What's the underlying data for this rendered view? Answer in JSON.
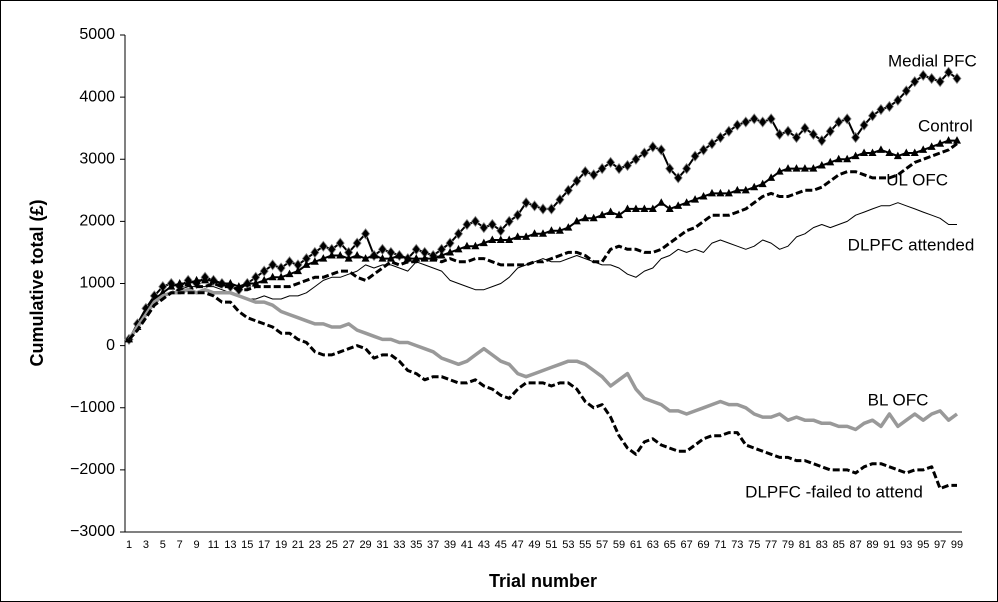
{
  "chart_data": {
    "type": "line",
    "y_label": "Cumulative total (£)",
    "x_label": "Trial number",
    "categories": [
      "1",
      null,
      "3",
      null,
      "5",
      null,
      "7",
      null,
      "9",
      null,
      "11",
      null,
      "13",
      null,
      "15",
      null,
      "17",
      null,
      "19",
      null,
      "21",
      null,
      "23",
      null,
      "25",
      null,
      "27",
      null,
      "29",
      null,
      "31",
      null,
      "33",
      null,
      "35",
      null,
      "37",
      null,
      "39",
      null,
      "41",
      null,
      "43",
      null,
      "45",
      null,
      "47",
      null,
      "49",
      null,
      "51",
      null,
      "53",
      null,
      "55",
      null,
      "57",
      null,
      "59",
      null,
      "61",
      null,
      "63",
      null,
      "65",
      null,
      "67",
      null,
      "69",
      null,
      "71",
      null,
      "73",
      null,
      "75",
      null,
      "77",
      null,
      "79",
      null,
      "81",
      null,
      "83",
      null,
      "85",
      null,
      "87",
      null,
      "89",
      null,
      "91",
      null,
      "93",
      null,
      "95",
      null,
      "97",
      null,
      "99"
    ],
    "ylim": [
      -3000,
      5000
    ],
    "yticks": [
      {
        "value": -3000,
        "label": "−3000"
      },
      {
        "value": -2000,
        "label": "−2000"
      },
      {
        "value": -1000,
        "label": "−1000"
      },
      0,
      1000,
      2000,
      3000,
      4000,
      5000
    ],
    "series": [
      {
        "name": "Medial PFC",
        "color": "#000000",
        "marker": "diamond",
        "line_style": "solid",
        "values": [
          100,
          350,
          600,
          800,
          950,
          1000,
          950,
          1050,
          1000,
          1100,
          1050,
          1000,
          950,
          900,
          1000,
          1100,
          1200,
          1300,
          1250,
          1350,
          1300,
          1400,
          1500,
          1600,
          1550,
          1650,
          1500,
          1650,
          1800,
          1450,
          1550,
          1500,
          1450,
          1400,
          1550,
          1500,
          1450,
          1550,
          1650,
          1800,
          1950,
          2000,
          1900,
          1950,
          1850,
          2000,
          2100,
          2300,
          2250,
          2200,
          2200,
          2350,
          2500,
          2650,
          2800,
          2750,
          2850,
          2950,
          2850,
          2900,
          3000,
          3100,
          3200,
          3150,
          2850,
          2700,
          2850,
          3050,
          3150,
          3250,
          3350,
          3450,
          3550,
          3600,
          3650,
          3600,
          3650,
          3400,
          3450,
          3350,
          3500,
          3400,
          3300,
          3450,
          3600,
          3650,
          3350,
          3550,
          3700,
          3800,
          3850,
          3950,
          4100,
          4250,
          4350,
          4300,
          4250,
          4400,
          4300
        ]
      },
      {
        "name": "Control",
        "color": "#000000",
        "marker": "triangle",
        "line_style": "solid",
        "values": [
          100,
          300,
          550,
          750,
          850,
          950,
          1000,
          1000,
          1050,
          1050,
          1050,
          1000,
          1000,
          950,
          1000,
          1000,
          1050,
          1100,
          1100,
          1150,
          1200,
          1300,
          1350,
          1400,
          1450,
          1450,
          1400,
          1450,
          1400,
          1450,
          1400,
          1400,
          1450,
          1400,
          1400,
          1400,
          1400,
          1450,
          1500,
          1550,
          1600,
          1600,
          1650,
          1700,
          1700,
          1700,
          1750,
          1750,
          1800,
          1800,
          1850,
          1850,
          1900,
          2000,
          2050,
          2050,
          2100,
          2150,
          2100,
          2200,
          2200,
          2200,
          2200,
          2300,
          2200,
          2250,
          2300,
          2350,
          2400,
          2450,
          2450,
          2450,
          2500,
          2500,
          2550,
          2600,
          2700,
          2800,
          2850,
          2850,
          2850,
          2850,
          2900,
          2950,
          3000,
          3000,
          3050,
          3100,
          3100,
          3150,
          3100,
          3050,
          3100,
          3100,
          3150,
          3200,
          3250,
          3300,
          3300
        ]
      },
      {
        "name": "UL OFC",
        "color": "#000000",
        "marker": "none",
        "line_style": "dashed",
        "values": [
          100,
          250,
          450,
          650,
          800,
          850,
          900,
          900,
          950,
          950,
          1000,
          950,
          950,
          900,
          900,
          950,
          950,
          950,
          950,
          950,
          1000,
          1050,
          1100,
          1100,
          1150,
          1200,
          1200,
          1100,
          1050,
          1150,
          1250,
          1350,
          1300,
          1350,
          1350,
          1400,
          1400,
          1350,
          1400,
          1350,
          1350,
          1400,
          1400,
          1350,
          1300,
          1300,
          1300,
          1300,
          1350,
          1350,
          1400,
          1450,
          1500,
          1500,
          1450,
          1350,
          1350,
          1550,
          1600,
          1550,
          1550,
          1500,
          1500,
          1550,
          1650,
          1750,
          1850,
          1900,
          2000,
          2100,
          2100,
          2100,
          2150,
          2200,
          2300,
          2400,
          2450,
          2400,
          2400,
          2450,
          2500,
          2500,
          2550,
          2650,
          2750,
          2800,
          2800,
          2750,
          2700,
          2700,
          2700,
          2750,
          2850,
          2950,
          3000,
          3050,
          3100,
          3150,
          3250
        ]
      },
      {
        "name": "DLPFC attended",
        "color": "#000000",
        "marker": "none",
        "line_style": "thin",
        "values": [
          100,
          300,
          500,
          650,
          800,
          850,
          900,
          950,
          950,
          950,
          950,
          900,
          850,
          800,
          750,
          750,
          800,
          750,
          750,
          800,
          800,
          850,
          950,
          1050,
          1100,
          1100,
          1150,
          1200,
          1300,
          1250,
          1300,
          1300,
          1250,
          1200,
          1350,
          1300,
          1250,
          1200,
          1050,
          1000,
          950,
          900,
          900,
          950,
          1000,
          1100,
          1250,
          1300,
          1350,
          1400,
          1350,
          1350,
          1400,
          1450,
          1400,
          1350,
          1300,
          1300,
          1250,
          1150,
          1100,
          1200,
          1250,
          1400,
          1450,
          1550,
          1500,
          1550,
          1500,
          1650,
          1700,
          1650,
          1600,
          1550,
          1600,
          1700,
          1650,
          1550,
          1600,
          1750,
          1800,
          1900,
          1950,
          1900,
          1950,
          2000,
          2100,
          2150,
          2200,
          2250,
          2250,
          2300,
          2250,
          2200,
          2150,
          2100,
          2050,
          1950,
          1950
        ]
      },
      {
        "name": "BL OFC",
        "color": "#999999",
        "marker": "none",
        "line_style": "solid",
        "values": [
          100,
          300,
          500,
          700,
          800,
          850,
          850,
          900,
          850,
          900,
          850,
          850,
          850,
          800,
          750,
          700,
          700,
          650,
          550,
          500,
          450,
          400,
          350,
          350,
          300,
          300,
          350,
          250,
          200,
          150,
          100,
          100,
          50,
          50,
          0,
          -50,
          -100,
          -200,
          -250,
          -300,
          -250,
          -150,
          -50,
          -150,
          -250,
          -300,
          -450,
          -500,
          -450,
          -400,
          -350,
          -300,
          -250,
          -250,
          -300,
          -400,
          -500,
          -650,
          -550,
          -450,
          -700,
          -850,
          -900,
          -950,
          -1050,
          -1050,
          -1100,
          -1050,
          -1000,
          -950,
          -900,
          -950,
          -950,
          -1000,
          -1100,
          -1150,
          -1150,
          -1100,
          -1200,
          -1150,
          -1200,
          -1200,
          -1250,
          -1250,
          -1300,
          -1300,
          -1350,
          -1250,
          -1200,
          -1300,
          -1100,
          -1300,
          -1200,
          -1100,
          -1200,
          -1100,
          -1050,
          -1200,
          -1100
        ]
      },
      {
        "name": "DLPFC -failed to attend",
        "color": "#000000",
        "marker": "none",
        "line_style": "dashed",
        "values": [
          100,
          250,
          450,
          650,
          750,
          850,
          850,
          850,
          850,
          850,
          800,
          700,
          700,
          550,
          450,
          400,
          350,
          300,
          200,
          200,
          100,
          50,
          -100,
          -150,
          -150,
          -100,
          -50,
          0,
          -50,
          -200,
          -150,
          -150,
          -250,
          -400,
          -450,
          -550,
          -500,
          -500,
          -550,
          -600,
          -600,
          -550,
          -650,
          -700,
          -800,
          -850,
          -700,
          -600,
          -600,
          -600,
          -650,
          -600,
          -600,
          -700,
          -900,
          -1000,
          -950,
          -1150,
          -1450,
          -1650,
          -1750,
          -1550,
          -1500,
          -1600,
          -1650,
          -1700,
          -1700,
          -1600,
          -1500,
          -1450,
          -1450,
          -1400,
          -1400,
          -1600,
          -1650,
          -1700,
          -1750,
          -1800,
          -1800,
          -1850,
          -1850,
          -1900,
          -1950,
          -2000,
          -2000,
          -2000,
          -2050,
          -1950,
          -1900,
          -1900,
          -1950,
          -2000,
          -2050,
          -2000,
          -2000,
          -1950,
          -2300,
          -2250,
          -2250
        ]
      }
    ]
  }
}
